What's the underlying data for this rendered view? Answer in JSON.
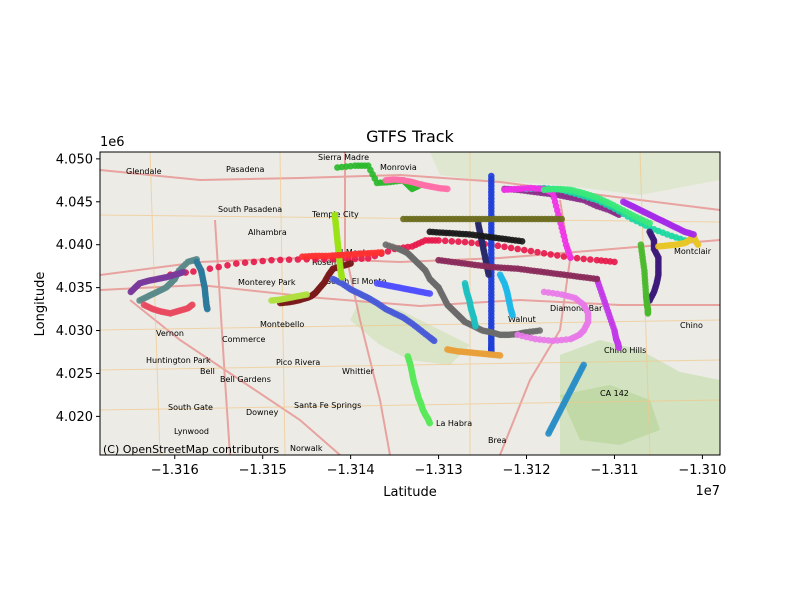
{
  "chart_data": {
    "type": "scatter",
    "title": "GTFS Track",
    "xlabel": "Latitude",
    "ylabel": "Longitude",
    "x_exponent": "1e7",
    "y_exponent": "1e6",
    "xlim": [
      -13168500,
      -13098000
    ],
    "ylim": [
      4015500,
      4050800
    ],
    "xticks": [
      -13160000,
      -13150000,
      -13140000,
      -13130000,
      -13120000,
      -13110000,
      -13100000
    ],
    "xtick_labels": [
      "−1.316",
      "−1.315",
      "−1.314",
      "−1.313",
      "−1.312",
      "−1.311",
      "−1.310"
    ],
    "yticks": [
      4020000,
      4025000,
      4030000,
      4035000,
      4040000,
      4045000,
      4050000
    ],
    "ytick_labels": [
      "4.020",
      "4.025",
      "4.030",
      "4.035",
      "4.040",
      "4.045",
      "4.050"
    ],
    "grid": false,
    "basemap": {
      "attribution": "(C) OpenStreetMap contributors",
      "places": [
        "Glendale",
        "Pasadena",
        "Sierra Madre",
        "Monrovia",
        "South Pasadena",
        "Temple City",
        "Alhambra",
        "Rosemead",
        "El Monte",
        "Monterey Park",
        "South El Monte",
        "Montebello",
        "Vernon",
        "Commerce",
        "Huntington Park",
        "Bell",
        "Pico Rivera",
        "Bell Gardens",
        "Whittier",
        "South Gate",
        "Downey",
        "Santa Fe Springs",
        "Lynwood",
        "Norwalk",
        "La Habra",
        "Brea",
        "Walnut",
        "Diamond Bar",
        "Chino Hills",
        "Chino",
        "Montclair",
        "CA 142"
      ]
    },
    "series": [
      {
        "color": "#e6194b",
        "x": [
          -13160500,
          -13157000,
          -13153000,
          -13149000,
          -13145000,
          -13141000,
          -13138000,
          -13135000,
          -13133000,
          -13131500,
          -13130000,
          -13127000,
          -13124000,
          -13121000,
          -13118000,
          -13115000,
          -13112000,
          -13110000
        ],
        "y": [
          4036500,
          4037000,
          4037800,
          4038200,
          4038300,
          4038300,
          4038400,
          4039500,
          4039800,
          4040500,
          4040500,
          4040300,
          4040000,
          4039500,
          4039000,
          4038500,
          4038200,
          4038000
        ]
      },
      {
        "color": "#1f3fd8",
        "x": [
          -13124000,
          -13124000,
          -13124000,
          -13124000,
          -13124000,
          -13124000,
          -13124000,
          -13124000,
          -13124000,
          -13124000,
          -13124000,
          -13124000,
          -13124000,
          -13124000,
          -13124000,
          -13124000
        ],
        "y": [
          4048000,
          4046500,
          4045000,
          4043500,
          4042000,
          4040500,
          4039000,
          4037500,
          4036000,
          4034500,
          4033000,
          4031500,
          4030000,
          4029000,
          4028000,
          4027600
        ]
      },
      {
        "color": "#2db82d",
        "x": [
          -13141500,
          -13139500,
          -13138000,
          -13137000,
          -13135500,
          -13134000,
          -13133500,
          -13133000,
          -13132000
        ],
        "y": [
          4049000,
          4049200,
          4049200,
          4047200,
          4047300,
          4047500,
          4047000,
          4046500,
          4047000
        ]
      },
      {
        "color": "#8b2e8b",
        "x": [
          -13122500,
          -13121000,
          -13119500,
          -13118000,
          -13116500,
          -13115000,
          -13113500,
          -13112000,
          -13110500,
          -13109500
        ],
        "y": [
          4046500,
          4046400,
          4046200,
          4046000,
          4045800,
          4045500,
          4045200,
          4044500,
          4044000,
          4043500
        ]
      },
      {
        "color": "#18d8a0",
        "x": [
          -13120000,
          -13118000,
          -13116000,
          -13114000,
          -13112000,
          -13110000,
          -13108000,
          -13106000,
          -13104000,
          -13102000
        ],
        "y": [
          4046500,
          4046600,
          4046400,
          4045800,
          4045200,
          4044200,
          4043000,
          4042000,
          4041200,
          4040500
        ]
      },
      {
        "color": "#f032e6",
        "x": [
          -13122500,
          -13121000,
          -13119500,
          -13118000,
          -13117000,
          -13116500,
          -13116000,
          -13115500,
          -13115000
        ],
        "y": [
          4046400,
          4046500,
          4046600,
          4046500,
          4046000,
          4044000,
          4042000,
          4040000,
          4038500
        ]
      },
      {
        "color": "#6b6b6b",
        "x": [
          -13136000,
          -13134500,
          -13133500,
          -13133000,
          -13132500,
          -13132000,
          -13131500,
          -13131000,
          -13130500,
          -13130000,
          -13129500,
          -13129000,
          -13128500,
          -13128000,
          -13127500,
          -13127000,
          -13126000,
          -13125000,
          -13124000,
          -13123000,
          -13122000,
          -13121000,
          -13120000,
          -13118500
        ],
        "y": [
          4040000,
          4039500,
          4039000,
          4038500,
          4038000,
          4037500,
          4037000,
          4036000,
          4035500,
          4035000,
          4034000,
          4033000,
          4032500,
          4032000,
          4031500,
          4031000,
          4030500,
          4030000,
          4029800,
          4029500,
          4029500,
          4029600,
          4029800,
          4030000
        ]
      },
      {
        "color": "#7a1a1a",
        "x": [
          -13148000,
          -13147000,
          -13146000,
          -13145000,
          -13144500,
          -13144000,
          -13143500,
          -13143000,
          -13142500,
          -13142000,
          -13141000,
          -13140000
        ],
        "y": [
          4033200,
          4033300,
          4033500,
          4033800,
          4034000,
          4034400,
          4035000,
          4035600,
          4036500,
          4037200,
          4037500,
          4037800
        ]
      },
      {
        "color": "#4a5bd8",
        "x": [
          -13142000,
          -13141000,
          -13140000,
          -13139000,
          -13138000,
          -13137000,
          -13136000,
          -13135000,
          -13134000,
          -13133000,
          -13132000,
          -13131000,
          -13130500
        ],
        "y": [
          4036000,
          4035500,
          4034800,
          4034300,
          4033800,
          4033200,
          4032500,
          4032000,
          4031500,
          4030800,
          4030000,
          4029200,
          4028800
        ]
      },
      {
        "color": "#9be315",
        "x": [
          -13141800,
          -13141700,
          -13141600,
          -13141500,
          -13141400,
          -13141300,
          -13141200,
          -13141100,
          -13141000
        ],
        "y": [
          4043500,
          4042500,
          4041500,
          4040500,
          4039500,
          4038500,
          4037500,
          4036800,
          4036200
        ]
      },
      {
        "color": "#3d1a7a",
        "x": [
          -13106000,
          -13105500,
          -13105500,
          -13105000,
          -13105000,
          -13105000,
          -13105200,
          -13105500,
          -13106000
        ],
        "y": [
          4041500,
          4040500,
          4039500,
          4038500,
          4037500,
          4036500,
          4035500,
          4034500,
          4033500
        ]
      },
      {
        "color": "#4bb82d",
        "x": [
          -13107000,
          -13106800,
          -13106600,
          -13106500,
          -13106400,
          -13106300,
          -13106200,
          -13106200
        ],
        "y": [
          4040000,
          4038500,
          4037000,
          4035500,
          4034000,
          4033000,
          4032500,
          4032000
        ]
      },
      {
        "color": "#e8c628",
        "x": [
          -13100500,
          -13100800,
          -13101000,
          -13101200,
          -13101500,
          -13102000,
          -13103000,
          -13104000,
          -13105000
        ],
        "y": [
          4040000,
          4040500,
          4041000,
          4040800,
          4040500,
          4040200,
          4040000,
          4039900,
          4039800
        ]
      },
      {
        "color": "#5a8a8a",
        "x": [
          -13164000,
          -13163000,
          -13162000,
          -13161000,
          -13160500,
          -13160000,
          -13159500,
          -13158500,
          -13157500
        ],
        "y": [
          4033500,
          4034000,
          4034500,
          4035000,
          4035500,
          4036000,
          4037000,
          4038000,
          4038300
        ]
      },
      {
        "color": "#7a3b9c",
        "x": [
          -13165000,
          -13164500,
          -13164000,
          -13163000,
          -13162000,
          -13161000,
          -13160000,
          -13159000
        ],
        "y": [
          4034500,
          4035000,
          4035500,
          4035800,
          4036000,
          4036200,
          4036500,
          4036800
        ]
      },
      {
        "color": "#2d7a9c",
        "x": [
          -13157500,
          -13157000,
          -13156800,
          -13156600,
          -13156500,
          -13156400,
          -13156300
        ],
        "y": [
          4038000,
          4037000,
          4036000,
          4035000,
          4034000,
          4033000,
          4032500
        ]
      },
      {
        "color": "#e84a5f",
        "x": [
          -13163500,
          -13162500,
          -13161500,
          -13160500,
          -13159500,
          -13158500,
          -13158000
        ],
        "y": [
          4033000,
          4032500,
          4032200,
          4032000,
          4032300,
          4032600,
          4033000
        ]
      },
      {
        "color": "#5ae85a",
        "x": [
          -13133500,
          -13133200,
          -13133000,
          -13132800,
          -13132500,
          -13132300,
          -13132000,
          -13131800,
          -13131500,
          -13131200,
          -13131000
        ],
        "y": [
          4027000,
          4026000,
          4025000,
          4024000,
          4023000,
          4022200,
          4021500,
          4020800,
          4020200,
          4019700,
          4019200
        ]
      },
      {
        "color": "#2b8fc7",
        "x": [
          -13113500,
          -13114000,
          -13114500,
          -13115000,
          -13115500,
          -13116000,
          -13116500,
          -13117000,
          -13117500
        ],
        "y": [
          4026000,
          4025000,
          4024000,
          4023000,
          4022000,
          4021000,
          4020000,
          4019000,
          4018000
        ]
      },
      {
        "color": "#c23ae8",
        "x": [
          -13112000,
          -13111500,
          -13111000,
          -13110500,
          -13110000,
          -13109800,
          -13109600,
          -13109500
        ],
        "y": [
          4036000,
          4034500,
          4033000,
          4031500,
          4030000,
          4029000,
          4028500,
          4028000
        ]
      },
      {
        "color": "#e87ae8",
        "x": [
          -13121000,
          -13119000,
          -13117000,
          -13115000,
          -13114000,
          -13113500,
          -13113000,
          -13113000,
          -13113500,
          -13114500,
          -13116000,
          -13118000
        ],
        "y": [
          4029500,
          4029000,
          4028800,
          4029000,
          4029500,
          4030000,
          4031000,
          4032000,
          4033000,
          4033800,
          4034200,
          4034500
        ]
      },
      {
        "color": "#1fb8e8",
        "x": [
          -13123000,
          -13122500,
          -13122200,
          -13122000,
          -13121800,
          -13121600
        ],
        "y": [
          4036500,
          4035500,
          4034500,
          4033500,
          4032500,
          4031800
        ]
      },
      {
        "color": "#2a2a6a",
        "x": [
          -13125500,
          -13125300,
          -13125100,
          -13124900,
          -13124700,
          -13124500,
          -13124300
        ],
        "y": [
          4042500,
          4041500,
          4040500,
          4039500,
          4038500,
          4037500,
          4036500
        ]
      },
      {
        "color": "#6d6d1f",
        "x": [
          -13134000,
          -13132500,
          -13131000,
          -13129500,
          -13128000,
          -13126500,
          -13125000,
          -13123500,
          -13122000,
          -13120500,
          -13119000,
          -13117500,
          -13116000
        ],
        "y": [
          4043000,
          4043000,
          4043000,
          4043000,
          4043000,
          4043000,
          4043000,
          4043000,
          4043000,
          4043000,
          4043000,
          4043000,
          4043000
        ]
      },
      {
        "color": "#ff6fa8",
        "x": [
          -13136000,
          -13135000,
          -13134000,
          -13133000,
          -13132000,
          -13131000,
          -13130000,
          -13129000
        ],
        "y": [
          4047500,
          4047600,
          4047500,
          4047300,
          4047000,
          4046800,
          4046600,
          4046500
        ]
      },
      {
        "color": "#3ae87a",
        "x": [
          -13118000,
          -13116500,
          -13115000,
          -13113500,
          -13112000,
          -13110500,
          -13109000,
          -13107500,
          -13106000
        ],
        "y": [
          4046400,
          4046500,
          4046400,
          4046000,
          4045500,
          4044800,
          4044000,
          4043200,
          4042500
        ]
      },
      {
        "color": "#8a2a5a",
        "x": [
          -13130000,
          -13128500,
          -13127000,
          -13125500,
          -13124000,
          -13122500,
          -13121000,
          -13119500,
          -13118000,
          -13116500,
          -13115000,
          -13113500,
          -13112000
        ],
        "y": [
          4038200,
          4038000,
          4037800,
          4037600,
          4037400,
          4037300,
          4037200,
          4037000,
          4036800,
          4036600,
          4036400,
          4036200,
          4036000
        ]
      },
      {
        "color": "#a52ae8",
        "x": [
          -13109000,
          -13108000,
          -13107000,
          -13106000,
          -13105000,
          -13104000,
          -13103000,
          -13102000,
          -13101000
        ],
        "y": [
          4045000,
          4044500,
          4044000,
          4043500,
          4043000,
          4042500,
          4042000,
          4041500,
          4041200
        ]
      },
      {
        "color": "#e8a03a",
        "x": [
          -13129000,
          -13128000,
          -13127000,
          -13126000,
          -13125000,
          -13124000,
          -13123000
        ],
        "y": [
          4027800,
          4027600,
          4027500,
          4027400,
          4027300,
          4027200,
          4027100
        ]
      },
      {
        "color": "#1a1a1a",
        "x": [
          -13131000,
          -13129500,
          -13128000,
          -13126500,
          -13125000,
          -13123500,
          -13122000,
          -13120500
        ],
        "y": [
          4041500,
          4041400,
          4041300,
          4041200,
          4041000,
          4040800,
          4040600,
          4040400
        ]
      },
      {
        "color": "#ff3030",
        "x": [
          -13145500,
          -13144000,
          -13142500,
          -13141000,
          -13139500,
          -13138000,
          -13136500
        ],
        "y": [
          4038600,
          4038700,
          4038700,
          4038800,
          4038900,
          4039000,
          4039100
        ]
      },
      {
        "color": "#20c0c0",
        "x": [
          -13127000,
          -13126800,
          -13126500,
          -13126300,
          -13126000,
          -13125800
        ],
        "y": [
          4035500,
          4034500,
          4033500,
          4032500,
          4031500,
          4030500
        ]
      },
      {
        "color": "#b0e040",
        "x": [
          -13149000,
          -13148000,
          -13147000,
          -13146000,
          -13145000
        ],
        "y": [
          4033500,
          4033600,
          4033800,
          4034000,
          4034200
        ]
      },
      {
        "color": "#5050ff",
        "x": [
          -13137000,
          -13136000,
          -13135000,
          -13134000,
          -13133000,
          -13132000,
          -13131000
        ],
        "y": [
          4035500,
          4035300,
          4035100,
          4034900,
          4034700,
          4034500,
          4034300
        ]
      }
    ]
  }
}
